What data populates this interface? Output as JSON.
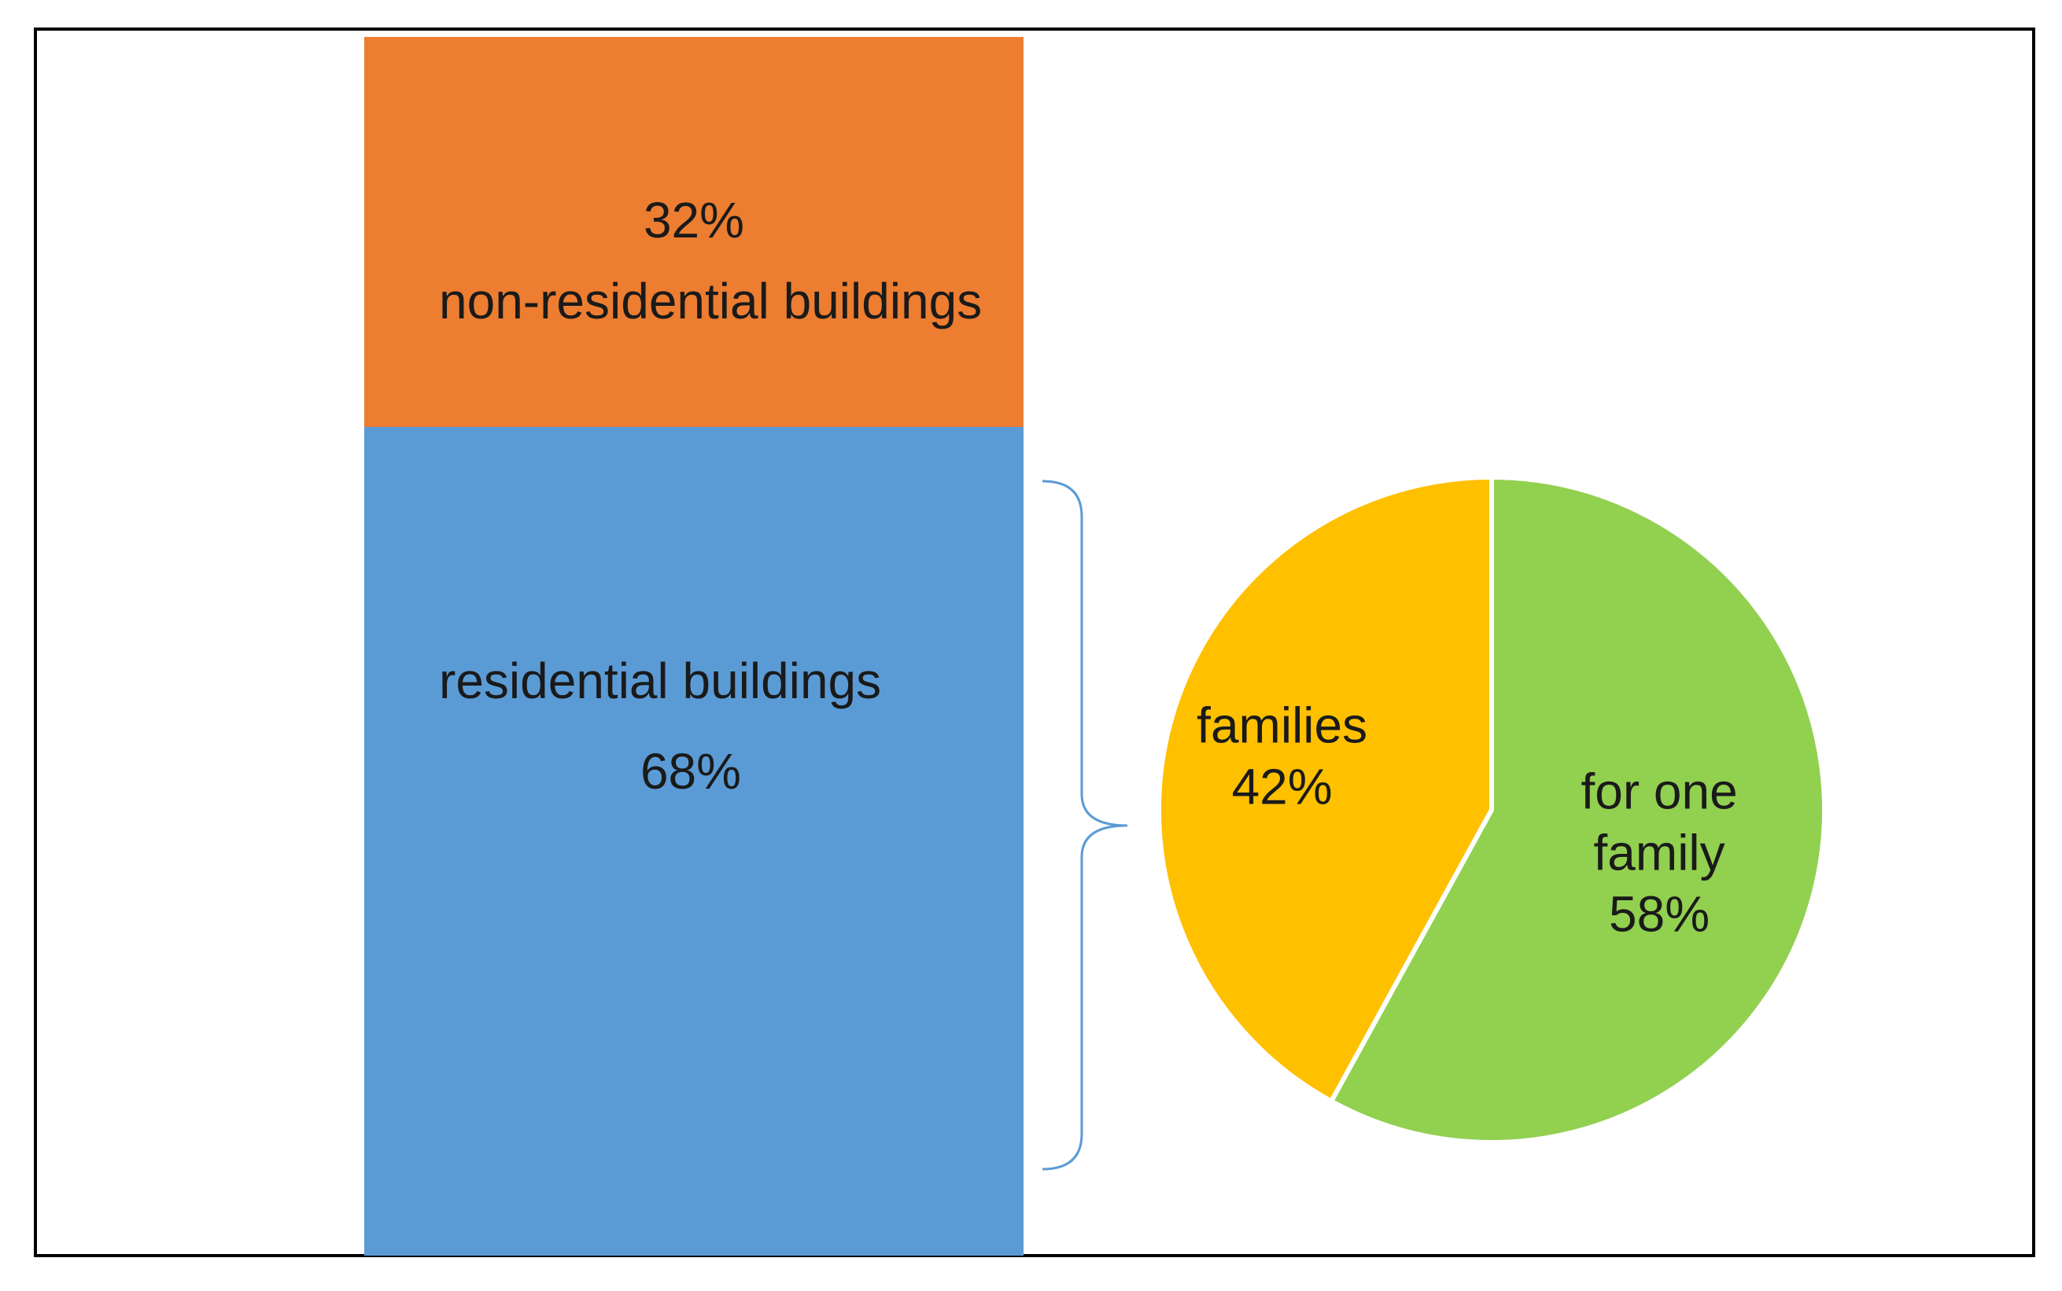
{
  "chart_data": [
    {
      "type": "bar",
      "stacked": true,
      "categories": [
        "buildings"
      ],
      "series": [
        {
          "name": "residential buildings",
          "values": [
            68
          ],
          "label": "68%",
          "color": "#5b9bd5"
        },
        {
          "name": "non-residential buildings",
          "values": [
            32
          ],
          "label": "32%",
          "color": "#ed7d31"
        }
      ],
      "ylim": [
        0,
        100
      ],
      "grid": false
    },
    {
      "type": "pie",
      "labels": [
        "for one family",
        "families"
      ],
      "label_lines": [
        [
          "for one",
          "family"
        ],
        [
          "families"
        ]
      ],
      "values": [
        58,
        42
      ],
      "value_labels": [
        "58%",
        "42%"
      ],
      "colors": [
        "#92d050",
        "#ffc000"
      ],
      "grid": false
    }
  ],
  "connector": {
    "type": "right-brace",
    "color": "#5b9bd5"
  },
  "frame_color": "#000000"
}
